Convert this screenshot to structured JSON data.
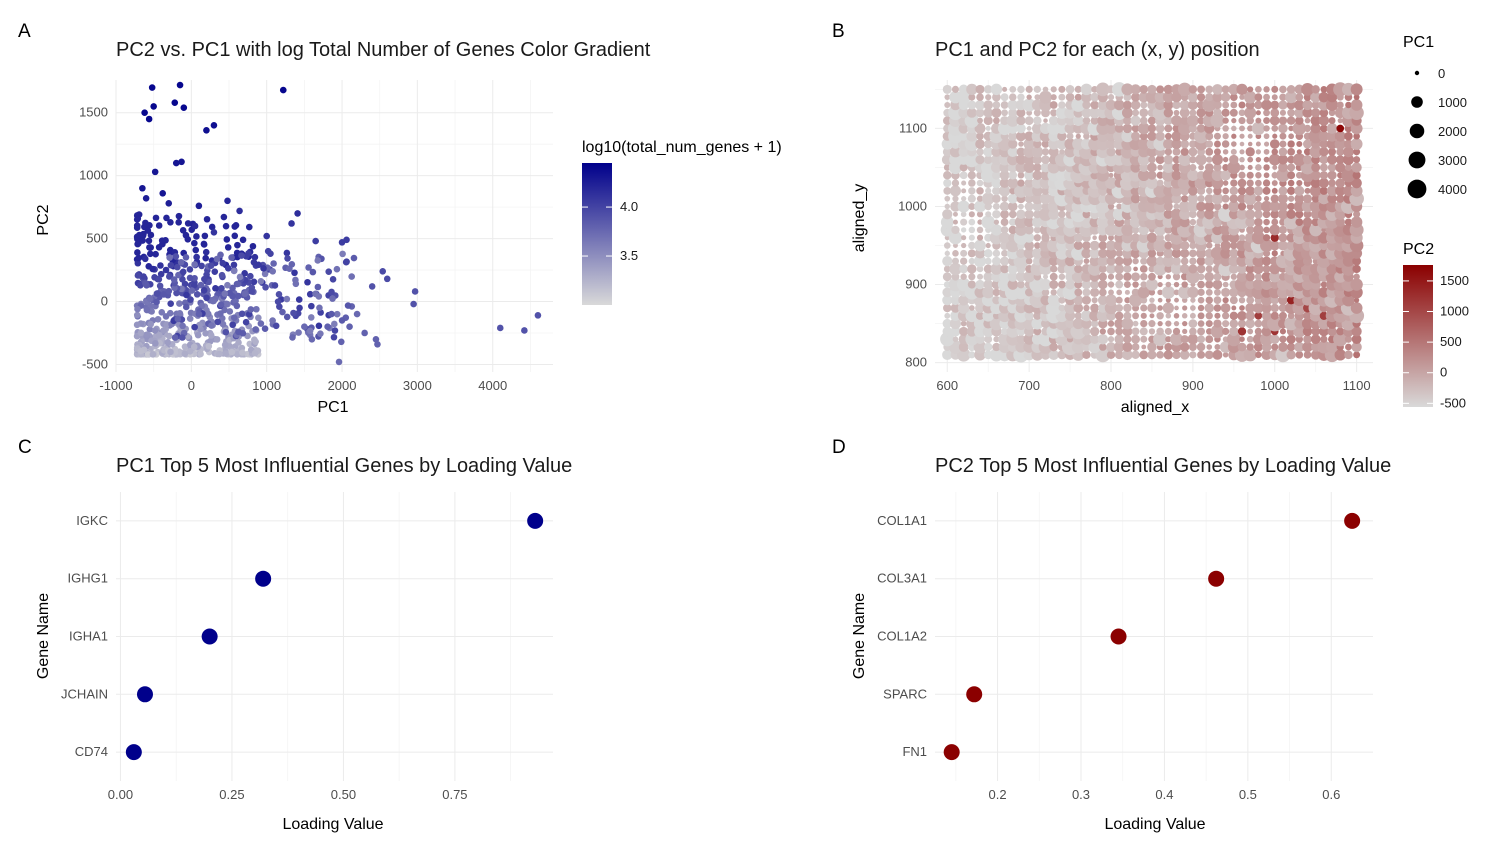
{
  "panels": [
    {
      "letter": "A",
      "title": "PC2 vs. PC1 with log Total Number of Genes Color Gradient"
    },
    {
      "letter": "B",
      "title": "PC1 and PC2 for each (x, y) position"
    },
    {
      "letter": "C",
      "title": "PC1 Top 5 Most Influential Genes by Loading Value"
    },
    {
      "letter": "D",
      "title": "PC2 Top 5 Most Influential Genes by Loading Value"
    }
  ],
  "colors": {
    "pc1_dark": "#00008B",
    "pc1_light": "#D9D9D9",
    "pc2_dark": "#8B0000",
    "pc2_light": "#D9D9D9"
  },
  "chart_data": [
    {
      "type": "scatter",
      "panel": "A",
      "title": "PC2 vs. PC1 with log Total Number of Genes Color Gradient",
      "xlabel": "PC1",
      "ylabel": "PC2",
      "xlim": [
        -1000,
        4800
      ],
      "ylim": [
        -560,
        1760
      ],
      "xticks": [
        -1000,
        0,
        1000,
        2000,
        3000,
        4000
      ],
      "xtick_labels": [
        "-1000",
        "0",
        "1000",
        "2000",
        "3000",
        "4000"
      ],
      "yticks": [
        -500,
        0,
        500,
        1000,
        1500
      ],
      "ytick_labels": [
        "-500",
        "0",
        "500",
        "1000",
        "1500"
      ],
      "legend": {
        "title": "log10(total_num_genes + 1)",
        "range": [
          3.0,
          4.45
        ],
        "ticks": [
          3.5,
          4.0
        ],
        "tick_labels": [
          "3.5",
          "4.0"
        ],
        "placement": "right"
      },
      "points": [
        [
          -520,
          1700,
          4.4
        ],
        [
          -150,
          1720,
          4.4
        ],
        [
          -620,
          1500,
          4.4
        ],
        [
          -500,
          1550,
          4.4
        ],
        [
          -220,
          1580,
          4.4
        ],
        [
          -560,
          1450,
          4.4
        ],
        [
          -100,
          1540,
          4.4
        ],
        [
          1220,
          1680,
          4.4
        ],
        [
          200,
          1360,
          4.35
        ],
        [
          300,
          1400,
          4.35
        ],
        [
          -200,
          1100,
          4.3
        ],
        [
          -130,
          1110,
          4.3
        ],
        [
          -480,
          1030,
          4.3
        ],
        [
          -650,
          900,
          4.3
        ],
        [
          -380,
          860,
          4.3
        ],
        [
          -600,
          820,
          4.25
        ],
        [
          -300,
          780,
          4.25
        ],
        [
          100,
          760,
          4.25
        ],
        [
          480,
          800,
          4.2
        ],
        [
          640,
          720,
          4.15
        ],
        [
          1410,
          700,
          4.15
        ],
        [
          1330,
          620,
          4.1
        ],
        [
          50,
          600,
          4.15
        ],
        [
          300,
          550,
          4.1
        ],
        [
          1000,
          520,
          4.1
        ],
        [
          2060,
          490,
          4.05
        ],
        [
          2000,
          470,
          4.05
        ],
        [
          1650,
          480,
          4.05
        ],
        [
          1020,
          400,
          4.0
        ],
        [
          1050,
          380,
          4.0
        ],
        [
          2540,
          240,
          3.95
        ],
        [
          2600,
          180,
          3.95
        ],
        [
          2400,
          120,
          3.9
        ],
        [
          2970,
          80,
          3.9
        ],
        [
          2950,
          -20,
          3.9
        ],
        [
          4600,
          -110,
          3.9
        ],
        [
          4100,
          -210,
          3.9
        ],
        [
          4420,
          -230,
          3.9
        ],
        [
          1860,
          -100,
          3.85
        ],
        [
          2000,
          -150,
          3.85
        ],
        [
          2100,
          -200,
          3.8
        ],
        [
          2300,
          -250,
          3.8
        ],
        [
          2450,
          -300,
          3.8
        ],
        [
          2470,
          -340,
          3.8
        ],
        [
          1990,
          -320,
          3.8
        ],
        [
          1960,
          -480,
          3.75
        ],
        [
          1600,
          -300,
          3.75
        ],
        [
          1500,
          -200,
          3.75
        ],
        [
          2200,
          -100,
          3.75
        ],
        [
          1700,
          -50,
          3.7
        ]
      ],
      "cluster": {
        "x_range": [
          -720,
          900
        ],
        "y_range": [
          -420,
          700
        ],
        "count": 520,
        "value_range": [
          3.1,
          4.2
        ]
      },
      "spread": {
        "x_range": [
          -300,
          2200
        ],
        "y_range": [
          -300,
          400
        ],
        "count": 170,
        "value_range": [
          3.6,
          4.1
        ]
      }
    },
    {
      "type": "scatter",
      "panel": "B",
      "title": "PC1 and PC2 for each (x, y) position",
      "xlabel": "aligned_x",
      "ylabel": "aligned_y",
      "xlim": [
        585,
        1120
      ],
      "ylim": [
        788,
        1162
      ],
      "xticks": [
        600,
        700,
        800,
        900,
        1000,
        1100
      ],
      "xtick_labels": [
        "600",
        "700",
        "800",
        "900",
        "1000",
        "1100"
      ],
      "yticks": [
        800,
        900,
        1000,
        1100
      ],
      "ytick_labels": [
        "800",
        "900",
        "1000",
        "1100"
      ],
      "grid": {
        "x_range": [
          600,
          1100
        ],
        "y_range": [
          810,
          1150
        ],
        "dx": 10,
        "dy": 10
      },
      "size_legend": {
        "title": "PC1",
        "values": [
          0,
          1000,
          2000,
          3000,
          4000
        ],
        "labels": [
          "0",
          "1000",
          "2000",
          "3000",
          "4000"
        ]
      },
      "color_legend": {
        "title": "PC2",
        "range": [
          -560,
          1760
        ],
        "ticks": [
          -500,
          0,
          500,
          1000,
          1500
        ],
        "tick_labels": [
          "-500",
          "0",
          "500",
          "1000",
          "1500"
        ]
      },
      "highlights": [
        [
          1080,
          1100,
          200,
          1700
        ],
        [
          1020,
          880,
          300,
          1400
        ],
        [
          1000,
          960,
          300,
          1300
        ],
        [
          960,
          840,
          300,
          1200
        ],
        [
          1000,
          840,
          200,
          1200
        ],
        [
          1060,
          860,
          300,
          1100
        ],
        [
          1040,
          870,
          400,
          1000
        ],
        [
          980,
          860,
          200,
          1100
        ]
      ]
    },
    {
      "type": "scatter",
      "panel": "C",
      "title": "PC1 Top 5 Most Influential Genes by Loading Value",
      "xlabel": "Loading Value",
      "ylabel": "Gene Name",
      "xlim": [
        -0.01,
        0.97
      ],
      "xticks": [
        0.0,
        0.25,
        0.5,
        0.75
      ],
      "xtick_labels": [
        "0.00",
        "0.25",
        "0.50",
        "0.75"
      ],
      "categories": [
        "IGKC",
        "IGHG1",
        "IGHA1",
        "JCHAIN",
        "CD74"
      ],
      "values": [
        0.93,
        0.32,
        0.2,
        0.055,
        0.03
      ],
      "color": "#00008B"
    },
    {
      "type": "scatter",
      "panel": "D",
      "title": "PC2 Top 5 Most Influential Genes by Loading Value",
      "xlabel": "Loading Value",
      "ylabel": "Gene Name",
      "xlim": [
        0.125,
        0.65
      ],
      "xticks": [
        0.2,
        0.3,
        0.4,
        0.5,
        0.6
      ],
      "xtick_labels": [
        "0.2",
        "0.3",
        "0.4",
        "0.5",
        "0.6"
      ],
      "categories": [
        "COL1A1",
        "COL3A1",
        "COL1A2",
        "SPARC",
        "FN1"
      ],
      "values": [
        0.625,
        0.462,
        0.345,
        0.172,
        0.145
      ],
      "color": "#8B0000"
    }
  ]
}
